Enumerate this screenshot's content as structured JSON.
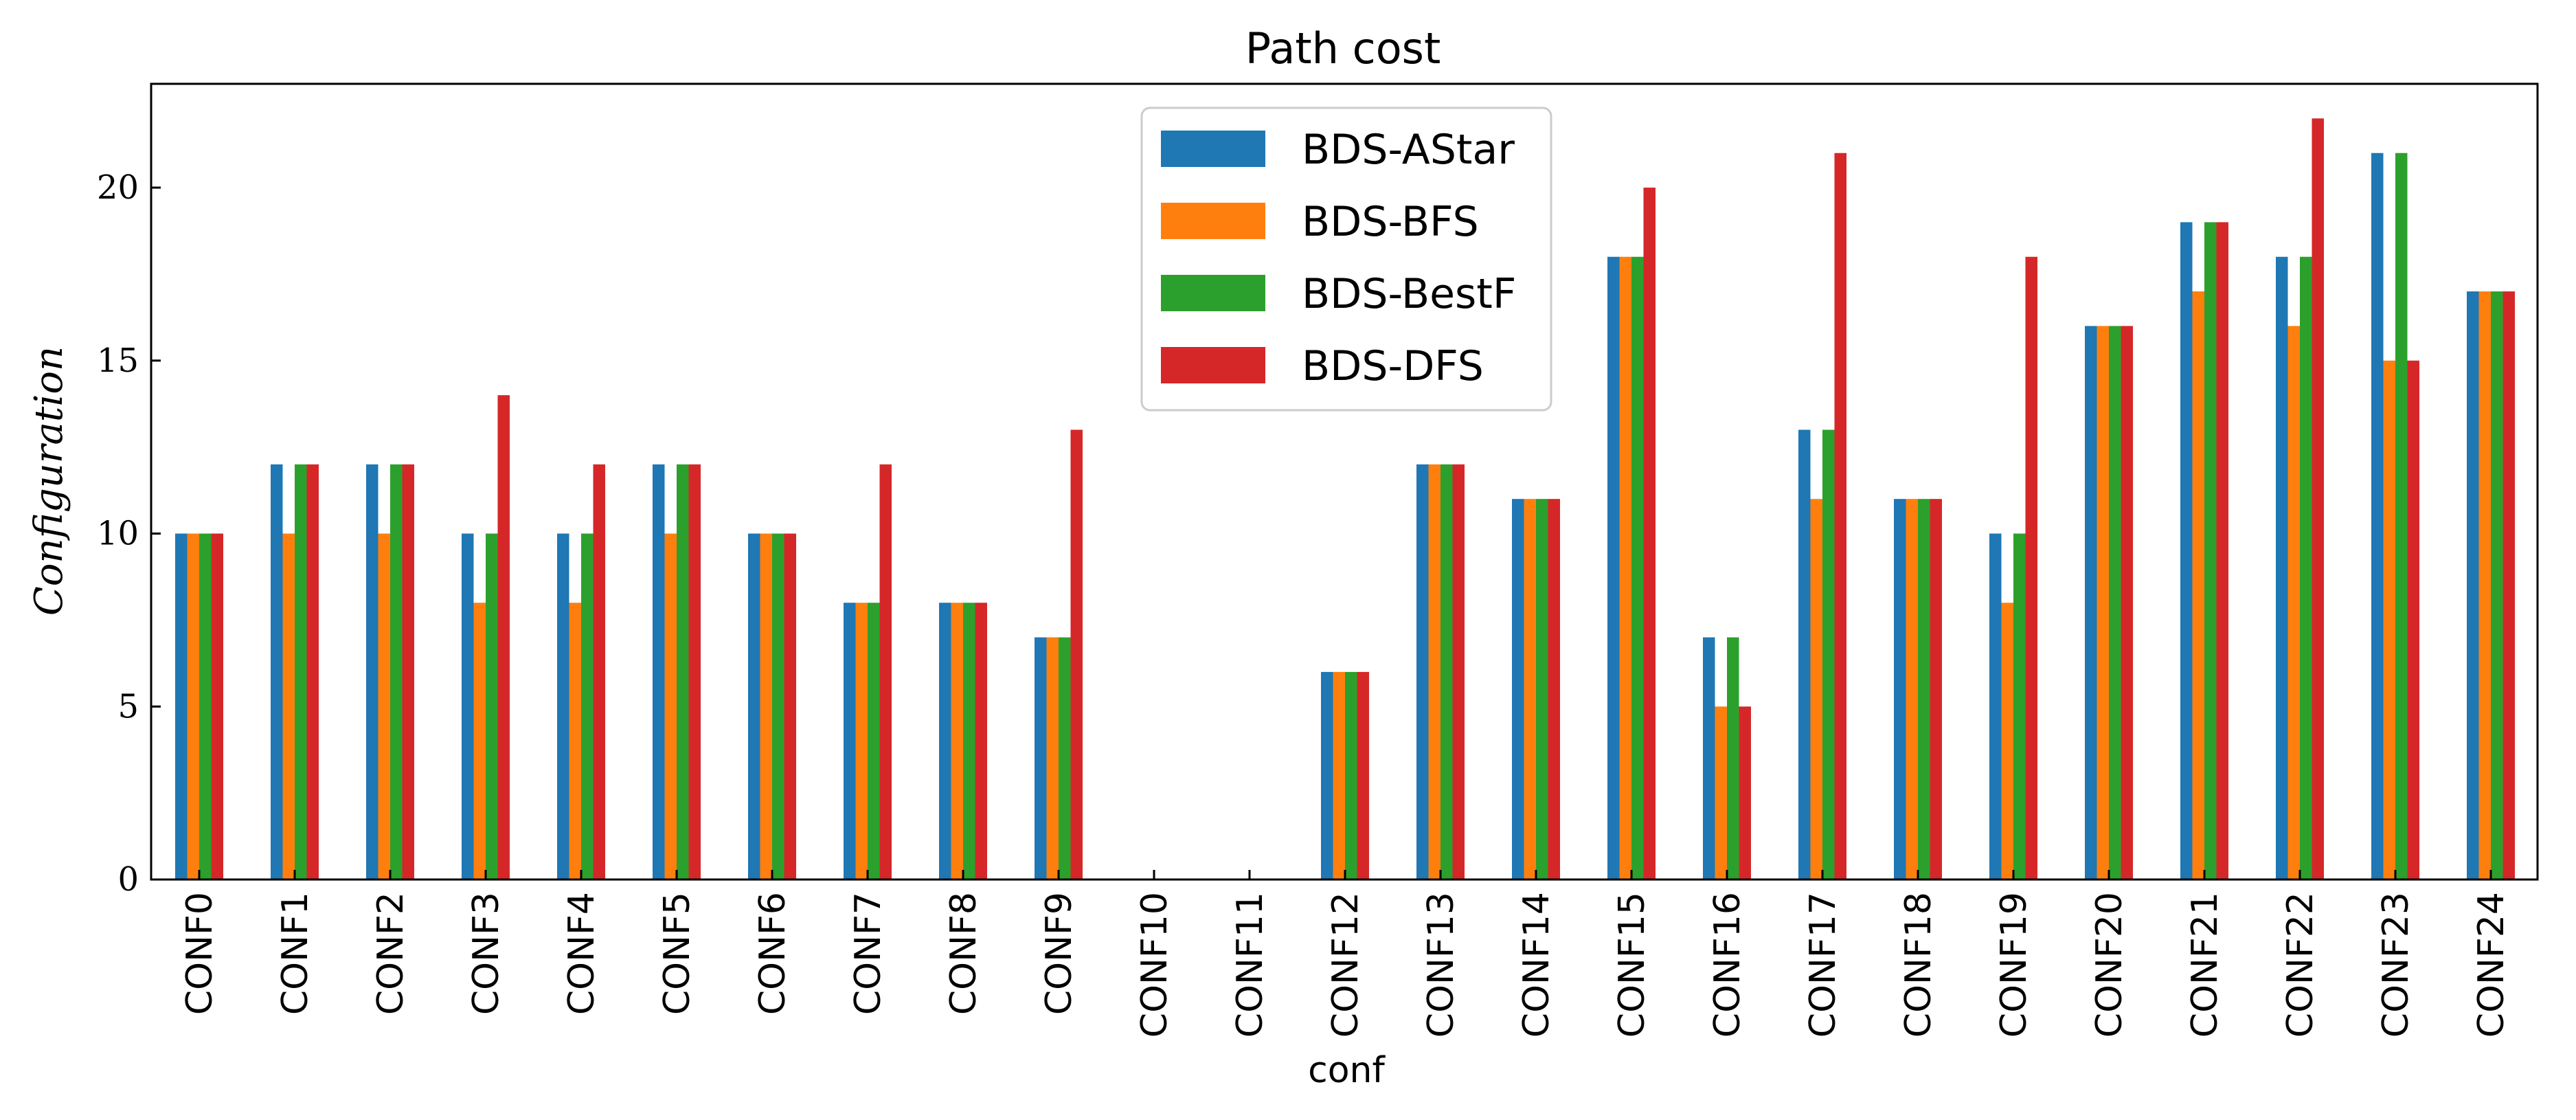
{
  "chart_data": {
    "type": "bar",
    "title": "Path cost",
    "xlabel": "conf",
    "ylabel": "Configuration",
    "ylim": [
      0,
      23
    ],
    "yticks": [
      0,
      5,
      10,
      15,
      20
    ],
    "legend_position": "top-center",
    "grid": false,
    "categories": [
      "CONF0",
      "CONF1",
      "CONF2",
      "CONF3",
      "CONF4",
      "CONF5",
      "CONF6",
      "CONF7",
      "CONF8",
      "CONF9",
      "CONF10",
      "CONF11",
      "CONF12",
      "CONF13",
      "CONF14",
      "CONF15",
      "CONF16",
      "CONF17",
      "CONF18",
      "CONF19",
      "CONF20",
      "CONF21",
      "CONF22",
      "CONF23",
      "CONF24"
    ],
    "series": [
      {
        "name": "BDS-AStar",
        "color": "#1f77b4",
        "values": [
          10,
          12,
          12,
          10,
          10,
          12,
          10,
          8,
          8,
          7,
          0,
          0,
          6,
          12,
          11,
          18,
          7,
          13,
          11,
          10,
          16,
          19,
          18,
          21,
          17
        ]
      },
      {
        "name": "BDS-BFS",
        "color": "#ff7f0e",
        "values": [
          10,
          10,
          10,
          8,
          8,
          10,
          10,
          8,
          8,
          7,
          0,
          0,
          6,
          12,
          11,
          18,
          5,
          11,
          11,
          8,
          16,
          17,
          16,
          15,
          17
        ]
      },
      {
        "name": "BDS-BestF",
        "color": "#2ca02c",
        "values": [
          10,
          12,
          12,
          10,
          10,
          12,
          10,
          8,
          8,
          7,
          0,
          0,
          6,
          12,
          11,
          18,
          7,
          13,
          11,
          10,
          16,
          19,
          18,
          21,
          17
        ]
      },
      {
        "name": "BDS-DFS",
        "color": "#d62728",
        "values": [
          10,
          12,
          12,
          14,
          12,
          12,
          10,
          12,
          8,
          13,
          0,
          0,
          6,
          12,
          11,
          20,
          5,
          21,
          11,
          18,
          16,
          19,
          22,
          15,
          17
        ]
      }
    ]
  }
}
